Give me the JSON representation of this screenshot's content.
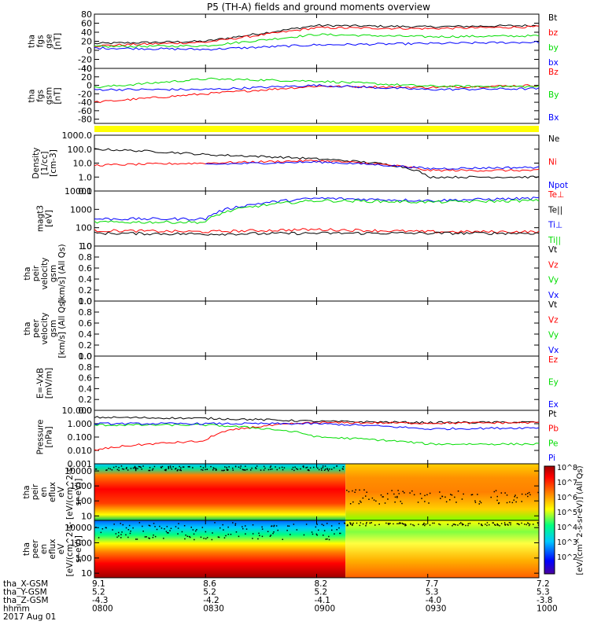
{
  "title": "P5 (TH-A) fields and ground moments overview",
  "colors": {
    "black": "#000000",
    "red": "#ff0000",
    "green": "#00dd00",
    "blue": "#0000ff",
    "yellow": "#ffff00"
  },
  "footer": {
    "row_labels": [
      "tha_X-GSM",
      "tha_Y-GSM",
      "tha_Z-GSM",
      "hhmm",
      "2017 Aug 01"
    ],
    "columns": [
      {
        "x": "9.1",
        "y": "5.2",
        "z": "-4.3",
        "t": "0800"
      },
      {
        "x": "8.6",
        "y": "5.2",
        "z": "-4.2",
        "t": "0830"
      },
      {
        "x": "8.2",
        "y": "5.2",
        "z": "-4.1",
        "t": "0900"
      },
      {
        "x": "7.7",
        "y": "5.3",
        "z": "-4.0",
        "t": "0930"
      },
      {
        "x": "7.2",
        "y": "5.3",
        "z": "-3.8",
        "t": "1000"
      }
    ]
  },
  "colorbar": {
    "ticks": [
      "10^8",
      "10^7",
      "10^6",
      "10^5",
      "10^4",
      "10^3",
      "10^2"
    ],
    "label": "[eV/(cm^2-s-sr-eV)] (All Qs)"
  },
  "chart_data": [
    {
      "id": "fgs_gse",
      "type": "line",
      "ylabel_lines": [
        "tha",
        "fgs",
        "gse",
        "[nT]"
      ],
      "ylim": [
        -40,
        80
      ],
      "y_ticks": [
        "80",
        "60",
        "40",
        "20",
        "0",
        "-20",
        "-40"
      ],
      "x": [
        "0800",
        "0830",
        "0900",
        "0930",
        "1000"
      ],
      "series": [
        {
          "name": "Bt",
          "color": "black",
          "values": [
            15,
            20,
            55,
            52,
            55
          ]
        },
        {
          "name": "bz",
          "color": "red",
          "values": [
            10,
            18,
            50,
            48,
            52
          ]
        },
        {
          "name": "by",
          "color": "green",
          "values": [
            8,
            10,
            35,
            30,
            32
          ]
        },
        {
          "name": "bx",
          "color": "blue",
          "values": [
            5,
            2,
            12,
            15,
            18
          ]
        }
      ]
    },
    {
      "id": "fgs_gsm",
      "type": "line",
      "ylabel_lines": [
        "tha",
        "fgs",
        "gsm",
        "[nT]"
      ],
      "ylim": [
        -90,
        40
      ],
      "y_ticks": [
        "40",
        "20",
        "0",
        "-20",
        "-40",
        "-60",
        "-80"
      ],
      "x": [
        "0800",
        "0830",
        "0900",
        "0930",
        "1000"
      ],
      "series": [
        {
          "name": "Bz",
          "color": "red",
          "values": [
            -40,
            -20,
            -2,
            -5,
            0
          ]
        },
        {
          "name": "By",
          "color": "green",
          "values": [
            -5,
            15,
            10,
            -2,
            -3
          ]
        },
        {
          "name": "Bx",
          "color": "blue",
          "values": [
            -10,
            -10,
            0,
            -10,
            -8
          ]
        }
      ]
    },
    {
      "id": "density",
      "type": "line",
      "ylabel_lines": [
        "Density",
        "[1/cc]",
        "[cm-3]"
      ],
      "scale": "log",
      "ylim": [
        0.1,
        1000
      ],
      "y_ticks": [
        "1000.0",
        "100.0",
        "10.0",
        "1.0",
        "0.1"
      ],
      "x": [
        "0800",
        "0830",
        "0900",
        "0930",
        "1000"
      ],
      "series": [
        {
          "name": "Ne",
          "color": "black",
          "values": [
            100,
            40,
            20,
            1,
            1
          ]
        },
        {
          "name": "Ni",
          "color": "red",
          "values": [
            7,
            10,
            15,
            3,
            3
          ]
        },
        {
          "name": "Npot",
          "color": "blue",
          "values": [
            null,
            8,
            12,
            4,
            5
          ]
        }
      ],
      "legend_extra": [
        {
          "name": "Ni",
          "color": "black"
        }
      ]
    },
    {
      "id": "temperature",
      "type": "line",
      "ylabel_lines": [
        "magt3",
        "[eV]"
      ],
      "scale": "log",
      "ylim": [
        10,
        10000
      ],
      "y_ticks": [
        "10000",
        "1000",
        "100",
        "10"
      ],
      "x": [
        "0800",
        "0830",
        "0900",
        "0930",
        "1000"
      ],
      "series": [
        {
          "name": "Te⊥",
          "color": "red",
          "values": [
            70,
            60,
            80,
            60,
            60
          ]
        },
        {
          "name": "Te||",
          "color": "black",
          "values": [
            50,
            45,
            50,
            50,
            50
          ]
        },
        {
          "name": "Ti⊥",
          "color": "blue",
          "values": [
            300,
            300,
            4000,
            3000,
            4000
          ]
        },
        {
          "name": "Ti||",
          "color": "green",
          "values": [
            200,
            200,
            3000,
            2500,
            3000
          ]
        }
      ]
    },
    {
      "id": "peir_velocity",
      "type": "line",
      "ylabel_lines": [
        "tha",
        "peir",
        "velocity",
        "gsm",
        "[km/s] (All Qs)"
      ],
      "ylim": [
        0,
        1
      ],
      "y_ticks": [
        "1.0",
        "0.8",
        "0.6",
        "0.4",
        "0.2",
        "0.0"
      ],
      "series": [
        {
          "name": "Vt",
          "color": "black",
          "values": []
        },
        {
          "name": "Vz",
          "color": "red",
          "values": []
        },
        {
          "name": "Vy",
          "color": "green",
          "values": []
        },
        {
          "name": "Vx",
          "color": "blue",
          "values": []
        }
      ]
    },
    {
      "id": "peer_velocity",
      "type": "line",
      "ylabel_lines": [
        "tha",
        "peer",
        "velocity",
        "gsm",
        "[km/s] (All Qs)"
      ],
      "ylim": [
        0,
        1
      ],
      "y_ticks": [
        "1.0",
        "0.8",
        "0.6",
        "0.4",
        "0.2",
        "0.0"
      ],
      "series": [
        {
          "name": "Vt",
          "color": "black",
          "values": []
        },
        {
          "name": "Vz",
          "color": "red",
          "values": []
        },
        {
          "name": "Vy",
          "color": "green",
          "values": []
        },
        {
          "name": "Vx",
          "color": "blue",
          "values": []
        }
      ]
    },
    {
      "id": "efield",
      "type": "line",
      "ylabel_lines": [
        "E=-VxB",
        "[mV/m]"
      ],
      "ylim": [
        0,
        1
      ],
      "y_ticks": [
        "1.0",
        "0.8",
        "0.6",
        "0.4",
        "0.2",
        "0.0"
      ],
      "series": [
        {
          "name": "Ez",
          "color": "red",
          "values": []
        },
        {
          "name": "Ey",
          "color": "green",
          "values": []
        },
        {
          "name": "Ex",
          "color": "blue",
          "values": []
        }
      ]
    },
    {
      "id": "pressure",
      "type": "line",
      "ylabel_lines": [
        "Pressure",
        "[nPa]"
      ],
      "scale": "log",
      "ylim": [
        0.001,
        10
      ],
      "y_ticks": [
        "10.000",
        "1.000",
        "0.100",
        "0.010",
        "0.001"
      ],
      "x": [
        "0800",
        "0830",
        "0900",
        "0930",
        "1000"
      ],
      "series": [
        {
          "name": "Pt",
          "color": "black",
          "values": [
            3,
            2.5,
            1.5,
            1.2,
            1.3
          ]
        },
        {
          "name": "Pb",
          "color": "red",
          "values": [
            0.01,
            0.05,
            1.2,
            1.1,
            1.2
          ]
        },
        {
          "name": "Pe",
          "color": "green",
          "values": [
            0.8,
            0.8,
            0.1,
            0.03,
            0.03
          ]
        },
        {
          "name": "Pi",
          "color": "blue",
          "values": [
            1,
            1,
            1,
            0.4,
            0.5
          ]
        }
      ]
    },
    {
      "id": "peir_spec",
      "type": "heatmap",
      "ylabel_lines": [
        "tha",
        "peir",
        "en",
        "eflux",
        "eV",
        "[eV/(cm^2-s-",
        "sr-eV)]"
      ],
      "scale": "log",
      "ylim": [
        5,
        30000
      ],
      "y_ticks": [
        "10000",
        "1000",
        "100",
        "10"
      ]
    },
    {
      "id": "peer_spec",
      "type": "heatmap",
      "ylabel_lines": [
        "tha",
        "peer",
        "en",
        "eflux",
        "eV",
        "[eV/(cm^2-s-",
        "sr-eV)]"
      ],
      "scale": "log",
      "ylim": [
        5,
        30000
      ],
      "y_ticks": [
        "10000",
        "1000",
        "100",
        "10"
      ]
    }
  ]
}
